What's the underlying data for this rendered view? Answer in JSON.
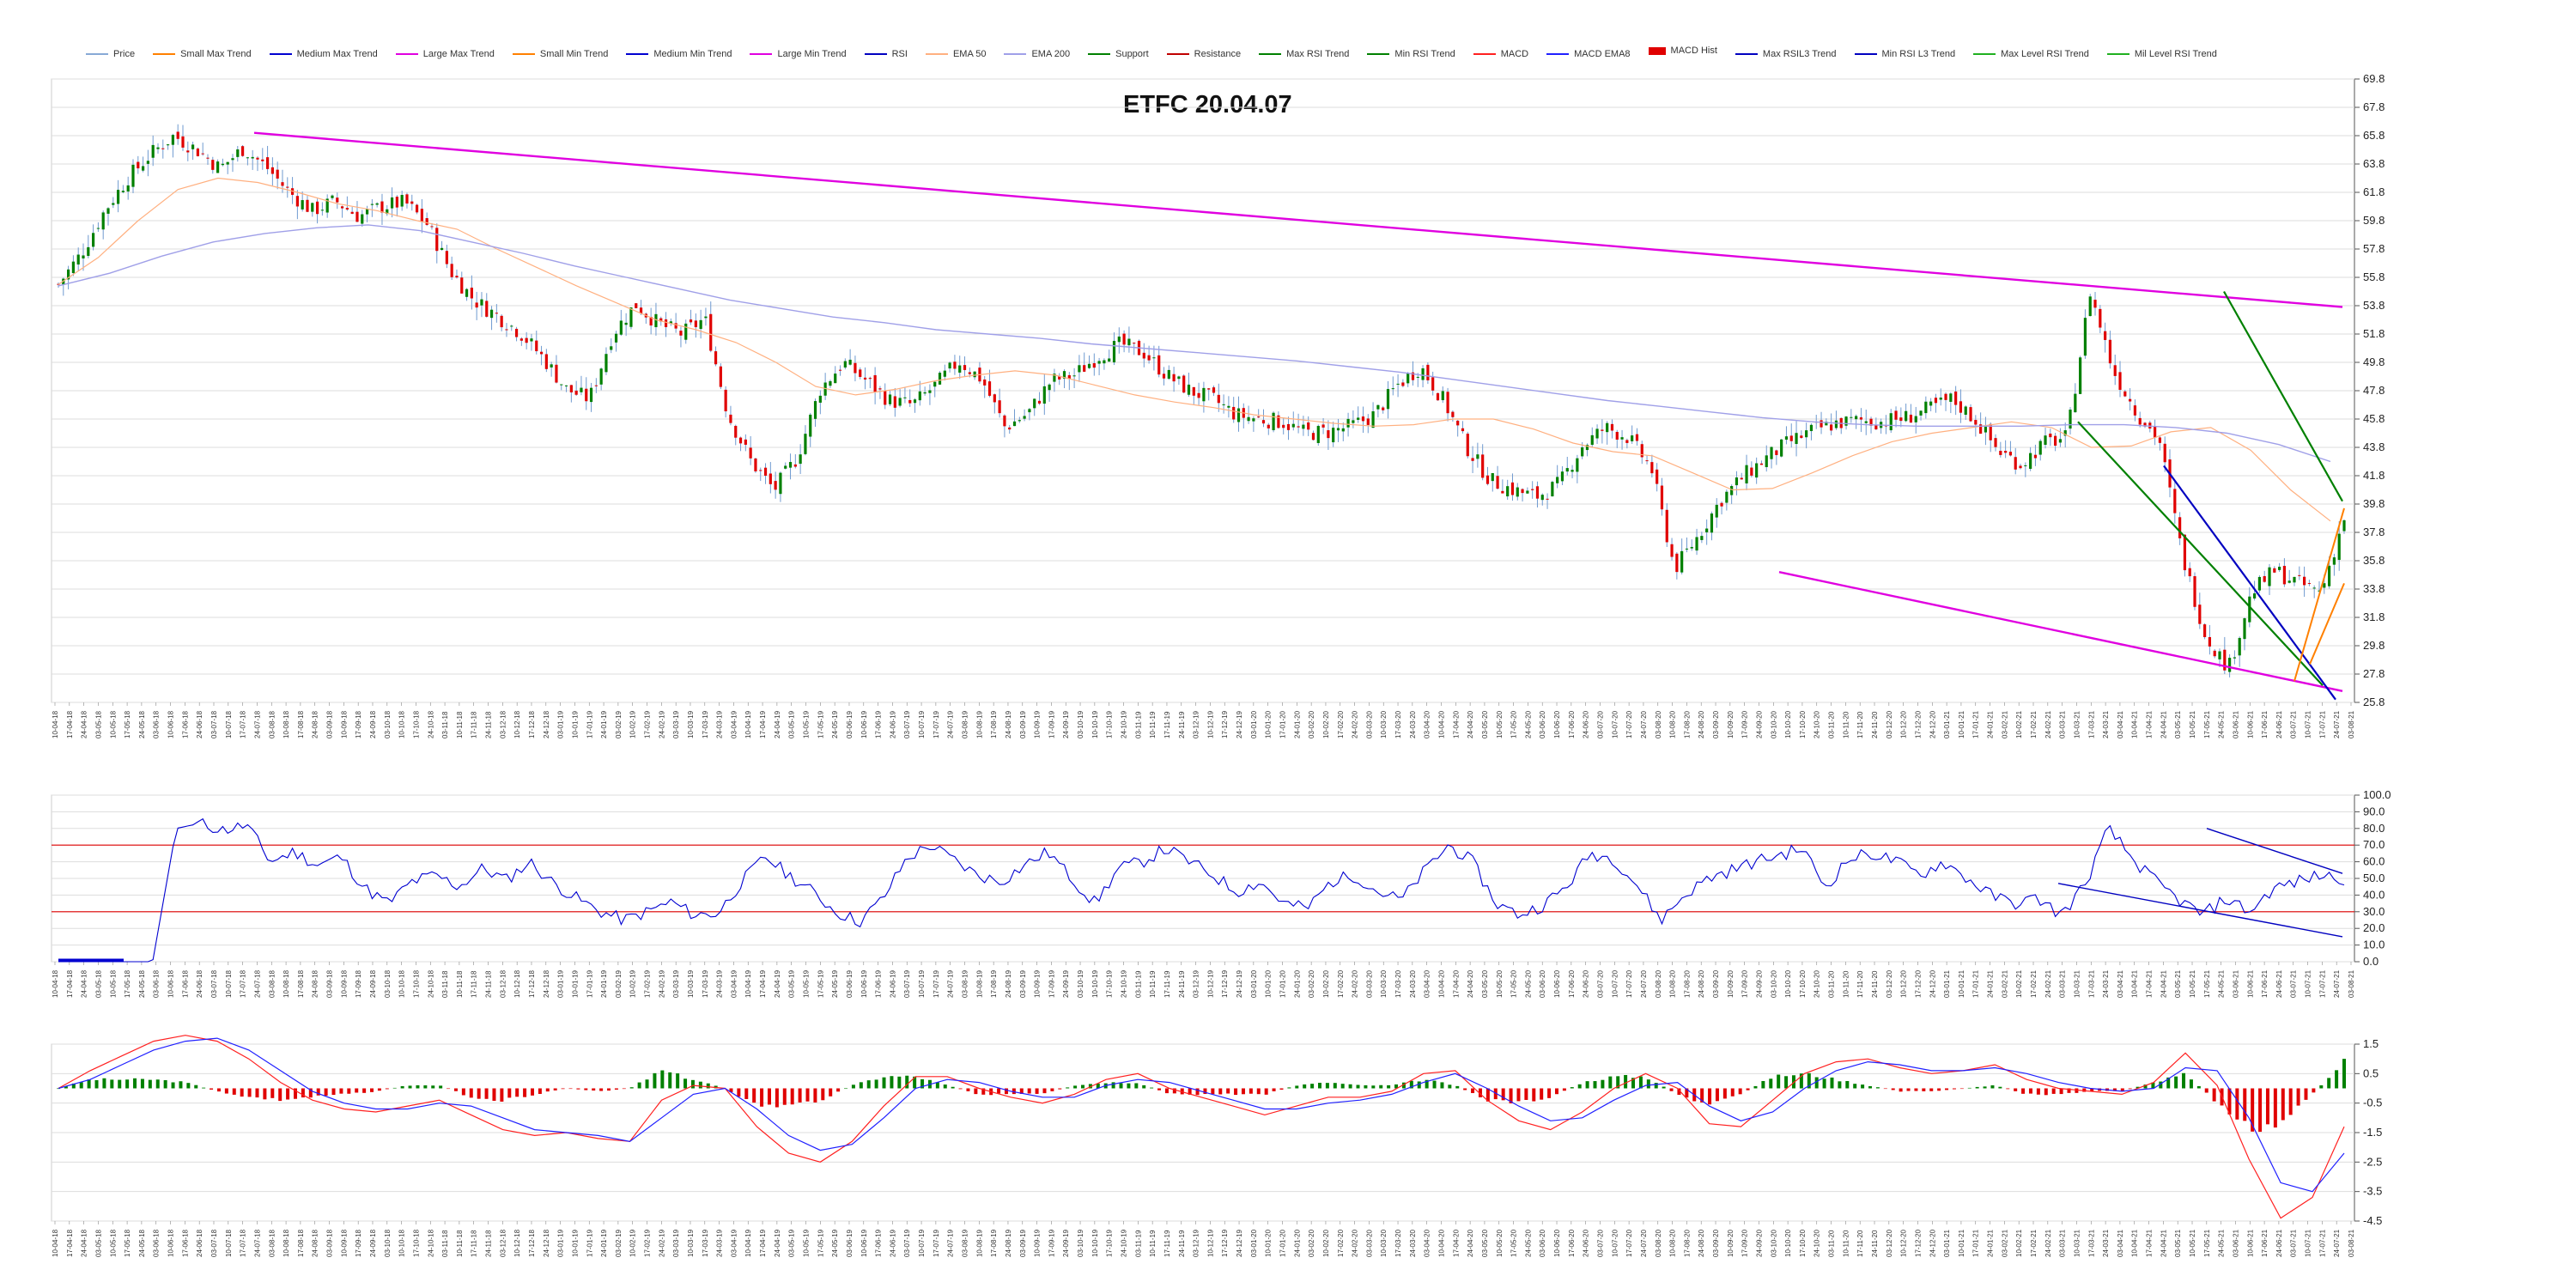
{
  "chart_title": "ETFC 20.04.07",
  "legend": [
    {
      "label": "Price",
      "color": "#87a9d6"
    },
    {
      "label": "Small Max Trend",
      "color": "#ff8000"
    },
    {
      "label": "Medium Max Trend",
      "color": "#0000d0"
    },
    {
      "label": "Large Max Trend",
      "color": "#e000e0"
    },
    {
      "label": "Small Min Trend",
      "color": "#ff8000"
    },
    {
      "label": "Medium Min Trend",
      "color": "#0000d0"
    },
    {
      "label": "Large Min Trend",
      "color": "#e000e0"
    },
    {
      "label": "RSI",
      "color": "#0000c0"
    },
    {
      "label": "EMA 50",
      "color": "#ffb080"
    },
    {
      "label": "EMA 200",
      "color": "#a0a0e8"
    },
    {
      "label": "Support",
      "color": "#008000"
    },
    {
      "label": "Resistance",
      "color": "#c00000"
    },
    {
      "label": "Max RSI Trend",
      "color": "#008000"
    },
    {
      "label": "Min RSI Trend",
      "color": "#008000"
    },
    {
      "label": "MACD",
      "color": "#ff2020"
    },
    {
      "label": "MACD EMA8",
      "color": "#2020ff"
    },
    {
      "label": "MACD Hist",
      "color": "#e00000",
      "box": true
    },
    {
      "label": "Max RSIL3 Trend",
      "color": "#0000c0"
    },
    {
      "label": "Min RSI L3 Trend",
      "color": "#0000c0"
    },
    {
      "label": "Max Level RSI Trend",
      "color": "#20b020"
    },
    {
      "label": "Mil Level RSI Trend",
      "color": "#20b020"
    }
  ],
  "colors": {
    "up": "#008000",
    "down": "#e00000",
    "ema50": "#ffb080",
    "ema200": "#a0a0e8",
    "trend_large": "#e000e0",
    "trend_green": "#008000",
    "trend_blue": "#0000c0",
    "trend_orange": "#ff8000",
    "rsi_line": "#0000d0",
    "rsi_band": "#e00000",
    "macd": "#ff2020",
    "macd_signal": "#2020ff"
  },
  "chart_data": [
    {
      "type": "candlestick",
      "title": "ETFC 20.04.07",
      "ylim": [
        25.8,
        69.8
      ],
      "yticks": [
        69.8,
        67.8,
        65.8,
        63.8,
        61.8,
        59.8,
        57.8,
        55.8,
        53.8,
        51.8,
        49.8,
        47.8,
        45.8,
        43.8,
        41.8,
        39.8,
        37.8,
        35.8,
        33.8,
        31.8,
        29.8,
        27.8,
        25.8
      ],
      "close_path": [
        55.3,
        57.5,
        60.5,
        62.8,
        64.5,
        65.8,
        64.8,
        63.5,
        64.9,
        63.6,
        61.8,
        60.5,
        61.2,
        60.1,
        60.8,
        61.1,
        59.5,
        56.2,
        54.2,
        53.1,
        51.9,
        50.1,
        47.9,
        47.2,
        51.8,
        53.9,
        52.5,
        51.8,
        52.9,
        46.1,
        42.8,
        40.8,
        43.1,
        47.9,
        49.8,
        48.5,
        47.1,
        46.8,
        48.2,
        49.9,
        48.6,
        45.2,
        46.2,
        48.5,
        48.9,
        50.2,
        51.1,
        50.5,
        48.9,
        47.8,
        47.2,
        46.1,
        45.8,
        45.6,
        44.8,
        44.9,
        45.3,
        46.1,
        48.2,
        49.5,
        47.1,
        43.8,
        41.5,
        40.8,
        40.3,
        41.2,
        43.9,
        45.2,
        44.5,
        42.3,
        35.2,
        37.5,
        40.1,
        41.8,
        43.1,
        44.2,
        45.0,
        45.5,
        45.7,
        45.6,
        45.9,
        46.5,
        47.2,
        45.8,
        43.6,
        42.6,
        44.1,
        44.5,
        54.8,
        49.2,
        46.3,
        44.3,
        36.1,
        30.5,
        28.2,
        33.6,
        35.1,
        34.2,
        33.6,
        38.8
      ],
      "ema50_path": [
        55.3,
        57.2,
        59.8,
        62.0,
        62.8,
        62.5,
        61.8,
        61.0,
        60.5,
        59.8,
        59.2,
        57.8,
        56.5,
        55.2,
        54.0,
        52.8,
        52.1,
        51.2,
        49.8,
        48.1,
        47.5,
        47.9,
        48.5,
        48.9,
        49.2,
        48.9,
        48.2,
        47.5,
        47.0,
        46.6,
        46.1,
        45.8,
        45.5,
        45.3,
        45.4,
        45.8,
        45.8,
        45.1,
        44.1,
        43.5,
        43.2,
        42.0,
        40.8,
        40.9,
        42.0,
        43.2,
        44.2,
        44.8,
        45.2,
        45.6,
        45.2,
        43.8,
        43.9,
        44.9,
        45.2,
        43.6,
        40.8,
        38.6
      ],
      "ema200_path": [
        55.2,
        56.1,
        57.3,
        58.3,
        58.9,
        59.3,
        59.5,
        59.1,
        58.3,
        57.5,
        56.6,
        55.8,
        55.0,
        54.2,
        53.6,
        53.0,
        52.6,
        52.1,
        51.8,
        51.5,
        51.1,
        50.8,
        50.5,
        50.2,
        49.9,
        49.5,
        49.1,
        48.6,
        48.1,
        47.6,
        47.1,
        46.7,
        46.3,
        45.9,
        45.6,
        45.4,
        45.3,
        45.3,
        45.3,
        45.4,
        45.4,
        45.2,
        44.8,
        44.0,
        42.8
      ],
      "large_max_trend": {
        "from": [
          66.0
        ],
        "to": [
          54.8
        ]
      },
      "large_min_trend": {
        "from": [
          35.0
        ],
        "to": [
          26.6
        ]
      }
    },
    {
      "type": "line",
      "title": "RSI",
      "ylim": [
        0,
        100
      ],
      "yticks": [
        100.0,
        90.0,
        80.0,
        70.0,
        60.0,
        50.0,
        40.0,
        30.0,
        20.0,
        10.0,
        0.0
      ],
      "bands": [
        70,
        30
      ],
      "values": [
        0,
        0,
        0,
        0,
        0,
        80,
        83,
        79,
        82,
        60,
        66,
        58,
        63,
        44,
        35,
        48,
        52,
        45,
        56,
        49,
        60,
        47,
        38,
        30,
        25,
        30,
        36,
        28,
        29,
        48,
        63,
        52,
        42,
        30,
        24,
        38,
        62,
        70,
        61,
        52,
        48,
        58,
        66,
        50,
        35,
        56,
        60,
        68,
        60,
        52,
        42,
        48,
        35,
        32,
        48,
        52,
        42,
        37,
        55,
        70,
        60,
        35,
        28,
        34,
        45,
        65,
        62,
        46,
        25,
        40,
        50,
        55,
        60,
        64,
        68,
        45,
        62,
        65,
        60,
        52,
        60,
        50,
        40,
        35,
        38,
        28,
        46,
        80,
        62,
        48,
        37,
        28,
        38,
        30,
        44,
        48,
        52,
        50
      ]
    },
    {
      "type": "line+bar",
      "title": "MACD",
      "ylim": [
        -4.5,
        1.5
      ],
      "yticks": [
        1.5,
        0.5,
        -0.5,
        -1.5,
        -2.5,
        -3.5,
        -4.5
      ],
      "macd": [
        0.0,
        0.6,
        1.1,
        1.6,
        1.8,
        1.6,
        1.0,
        0.2,
        -0.4,
        -0.7,
        -0.8,
        -0.6,
        -0.4,
        -0.9,
        -1.4,
        -1.6,
        -1.5,
        -1.7,
        -1.8,
        -0.4,
        0.1,
        0.0,
        -1.3,
        -2.2,
        -2.5,
        -1.8,
        -0.6,
        0.4,
        0.4,
        0.0,
        -0.3,
        -0.5,
        -0.2,
        0.3,
        0.5,
        0.0,
        -0.3,
        -0.6,
        -0.9,
        -0.6,
        -0.3,
        -0.3,
        -0.1,
        0.5,
        0.6,
        -0.4,
        -1.1,
        -1.4,
        -0.8,
        0.0,
        0.5,
        0.0,
        -1.2,
        -1.3,
        -0.4,
        0.5,
        0.9,
        1.0,
        0.7,
        0.5,
        0.6,
        0.8,
        0.3,
        0.0,
        -0.1,
        -0.2,
        0.2,
        1.2,
        0.1,
        -2.4,
        -4.4,
        -3.7,
        -1.3
      ],
      "signal": [
        0.0,
        0.3,
        0.8,
        1.3,
        1.6,
        1.7,
        1.3,
        0.6,
        -0.1,
        -0.5,
        -0.7,
        -0.7,
        -0.5,
        -0.6,
        -1.0,
        -1.4,
        -1.5,
        -1.6,
        -1.8,
        -1.0,
        -0.2,
        0.0,
        -0.7,
        -1.6,
        -2.1,
        -1.9,
        -1.0,
        0.0,
        0.3,
        0.2,
        -0.1,
        -0.3,
        -0.3,
        0.1,
        0.3,
        0.2,
        -0.1,
        -0.4,
        -0.7,
        -0.7,
        -0.5,
        -0.4,
        -0.2,
        0.2,
        0.5,
        0.0,
        -0.6,
        -1.1,
        -1.0,
        -0.4,
        0.1,
        0.2,
        -0.6,
        -1.1,
        -0.8,
        0.0,
        0.6,
        0.9,
        0.8,
        0.6,
        0.6,
        0.7,
        0.5,
        0.2,
        0.0,
        -0.1,
        0.0,
        0.7,
        0.6,
        -1.0,
        -3.2,
        -3.5,
        -2.2
      ],
      "hist": [
        0.0,
        0.3,
        0.3,
        0.3,
        0.2,
        -0.1,
        -0.3,
        -0.4,
        -0.3,
        -0.2,
        -0.1,
        0.1,
        0.1,
        -0.3,
        -0.4,
        -0.2,
        0.0,
        -0.1,
        0.0,
        0.6,
        0.3,
        0.0,
        -0.6,
        -0.6,
        -0.4,
        0.1,
        0.4,
        0.4,
        0.1,
        -0.2,
        -0.2,
        -0.2,
        0.1,
        0.2,
        0.2,
        -0.2,
        -0.2,
        -0.2,
        -0.2,
        0.1,
        0.2,
        0.1,
        0.1,
        0.3,
        0.1,
        -0.4,
        -0.5,
        -0.3,
        0.2,
        0.4,
        0.4,
        -0.2,
        -0.6,
        -0.2,
        0.4,
        0.5,
        0.3,
        0.1,
        -0.1,
        -0.1,
        0.0,
        0.1,
        -0.2,
        -0.2,
        -0.1,
        -0.1,
        0.2,
        0.5,
        -0.5,
        -1.4,
        -1.2,
        -0.2,
        0.9
      ]
    }
  ]
}
